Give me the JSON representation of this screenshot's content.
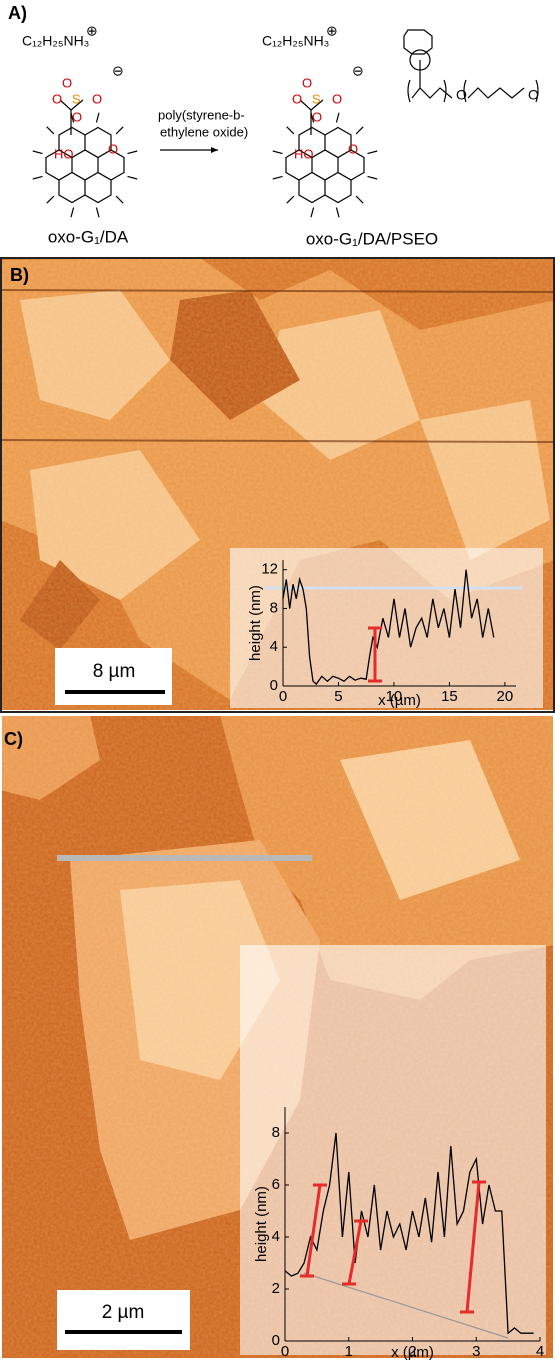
{
  "figure": {
    "panel_a": {
      "label": "A)",
      "cation_left": "C₁₂H₂₅NH₃",
      "cation_right": "C₁₂H₂₅NH₃",
      "plus": "⊕",
      "minus": "⊖",
      "atoms_left": [
        "O",
        "S",
        "O",
        "O",
        "O",
        "HO",
        "O"
      ],
      "atoms_right": [
        "O",
        "S",
        "O",
        "O",
        "O",
        "HO",
        "O",
        "O",
        "O"
      ],
      "reagent": [
        "poly(styrene-b-",
        "ethylene oxide)"
      ],
      "name_left": "oxo-G₁/DA",
      "name_right": "oxo-G₁/DA/PSEO"
    },
    "panel_b": {
      "label": "B)",
      "scale": "8 µm"
    },
    "panel_c": {
      "label": "C)",
      "scale": "2 µm"
    }
  },
  "chart_data": [
    {
      "type": "line",
      "xlabel": "x (µm)",
      "ylabel": "height (nm)",
      "color": "#000000",
      "x": [
        0,
        0.3,
        0.6,
        0.9,
        1.2,
        1.5,
        1.8,
        2.1,
        2.4,
        2.7,
        3,
        3.5,
        4,
        4.5,
        5,
        5.5,
        6,
        6.5,
        7,
        7.5,
        7.8,
        8.1,
        8.5,
        9,
        9.5,
        10,
        10.5,
        11,
        11.5,
        12,
        12.5,
        13,
        13.5,
        14,
        14.5,
        15,
        15.5,
        16,
        16.5,
        17,
        17.5,
        18,
        18.5,
        19
      ],
      "values": [
        9,
        11,
        8,
        10.5,
        9,
        11,
        10,
        8,
        3,
        0.5,
        0.2,
        1,
        0.5,
        1,
        0.8,
        0.5,
        1,
        0.6,
        0.8,
        0.7,
        3,
        5,
        4,
        7,
        5,
        9,
        5,
        8,
        4,
        6,
        7,
        5,
        9,
        6,
        8,
        5,
        10,
        6,
        12,
        7,
        9,
        5,
        8,
        5
      ],
      "xlim": [
        0,
        21
      ],
      "xticks": [
        0,
        5,
        10,
        15,
        20
      ],
      "ylim": [
        0,
        13
      ],
      "yticks": [
        0,
        4,
        8,
        12
      ]
    },
    {
      "type": "line",
      "xlabel": "x (µm)",
      "ylabel": "height (nm)",
      "color": "#000000",
      "x": [
        0,
        0.1,
        0.2,
        0.3,
        0.4,
        0.5,
        0.6,
        0.7,
        0.8,
        0.9,
        1,
        1.1,
        1.2,
        1.3,
        1.4,
        1.5,
        1.6,
        1.7,
        1.8,
        1.9,
        2,
        2.1,
        2.2,
        2.3,
        2.4,
        2.5,
        2.6,
        2.7,
        2.8,
        2.9,
        3,
        3.1,
        3.2,
        3.3,
        3.4,
        3.5,
        3.6,
        3.7,
        3.8,
        3.9
      ],
      "values": [
        2.7,
        2.5,
        2.6,
        3,
        4,
        3.5,
        5,
        6,
        8,
        4,
        6.5,
        3,
        5,
        4,
        6,
        3.5,
        5,
        4,
        4.5,
        3.5,
        5,
        4,
        5.5,
        3.8,
        6.5,
        4,
        7.5,
        4.5,
        5,
        6.5,
        7,
        4.5,
        6,
        5,
        5,
        0.3,
        0.5,
        0.3,
        0.3,
        0.3
      ],
      "xlim": [
        0,
        4
      ],
      "xticks": [
        0,
        1,
        2,
        3,
        4
      ],
      "ylim": [
        0,
        9
      ],
      "yticks": [
        0,
        2,
        4,
        6,
        8
      ]
    }
  ]
}
